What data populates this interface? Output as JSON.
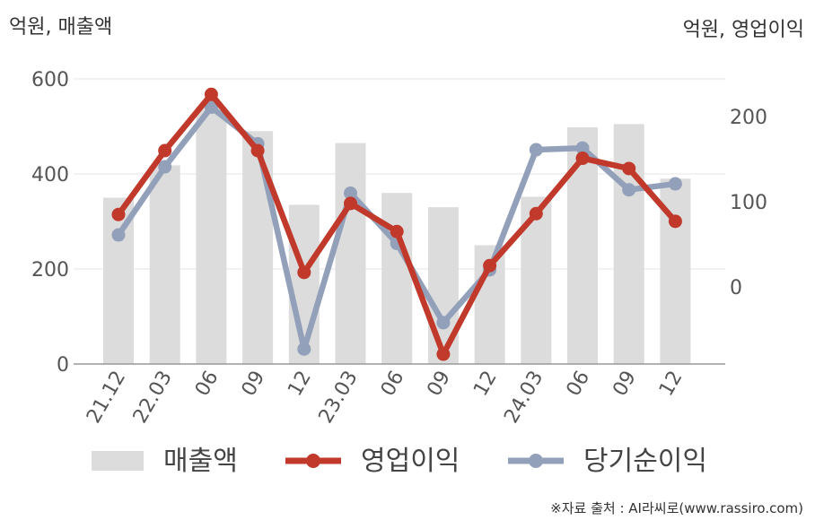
{
  "chart_data": {
    "type": "bar+line",
    "units": {
      "left": "억원, 매출액",
      "right": "억원, 영업이익"
    },
    "categories": [
      "21.12",
      "22.03",
      "06",
      "09",
      "12",
      "23.03",
      "06",
      "09",
      "12",
      "24.03",
      "06",
      "09",
      "12"
    ],
    "bars": {
      "name": "매출액",
      "axis": "left",
      "color": "#dcdcdc",
      "values": [
        350,
        418,
        540,
        490,
        335,
        465,
        360,
        330,
        250,
        352,
        498,
        505,
        390
      ]
    },
    "series": [
      {
        "name": "영업이익",
        "axis": "right",
        "color": "#c0392b",
        "values": [
          85,
          160,
          226,
          160,
          17,
          98,
          65,
          -79,
          25,
          86,
          151,
          139,
          77
        ]
      },
      {
        "name": "당기순이익",
        "axis": "right",
        "color": "#93a0ba",
        "values": [
          61,
          141,
          211,
          168,
          -73,
          110,
          51,
          -42,
          20,
          161,
          163,
          114,
          121
        ]
      }
    ],
    "left_axis": {
      "range": [
        0,
        600
      ],
      "ticks": [
        0,
        200,
        400,
        600
      ]
    },
    "right_axis": {
      "range": [
        -90,
        250
      ],
      "ticks": [
        0,
        100,
        200
      ]
    },
    "grid": true,
    "legend_position": "bottom"
  },
  "source": "※자료 출처 : AI라씨로(www.rassiro.com)"
}
